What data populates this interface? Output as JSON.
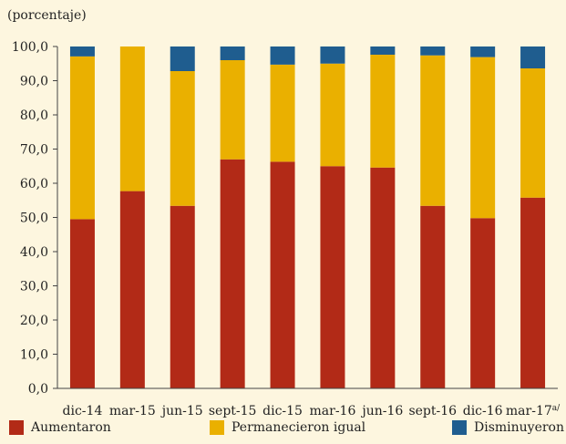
{
  "chart_data": {
    "type": "bar",
    "stacked": true,
    "unit_label": "(porcentaje)",
    "categories": [
      "dic-14",
      "mar-15",
      "jun-15",
      "sept-15",
      "dic-15",
      "mar-16",
      "jun-16",
      "sept-16",
      "dic-16",
      "mar-17"
    ],
    "last_category_superscript": "a/",
    "series": [
      {
        "name": "Aumentaron",
        "color": "#b22a17",
        "values": [
          49.5,
          57.7,
          53.4,
          67.0,
          66.3,
          65.0,
          64.6,
          53.4,
          49.8,
          55.8
        ]
      },
      {
        "name": "Permanecieron igual",
        "color": "#eab000",
        "values": [
          47.6,
          42.3,
          39.4,
          29.0,
          28.4,
          30.0,
          33.0,
          44.0,
          47.1,
          37.8
        ]
      },
      {
        "name": "Disminuyeron",
        "color": "#1f5d8f",
        "values": [
          2.9,
          0.0,
          7.2,
          4.0,
          5.3,
          5.0,
          2.4,
          2.6,
          3.1,
          6.4
        ]
      }
    ],
    "ylim": [
      0,
      100
    ],
    "yticks": [
      "0,0",
      "10,0",
      "20,0",
      "30,0",
      "40,0",
      "50,0",
      "60,0",
      "70,0",
      "80,0",
      "90,0",
      "100,0"
    ],
    "grid": false,
    "legend_position": "bottom"
  }
}
